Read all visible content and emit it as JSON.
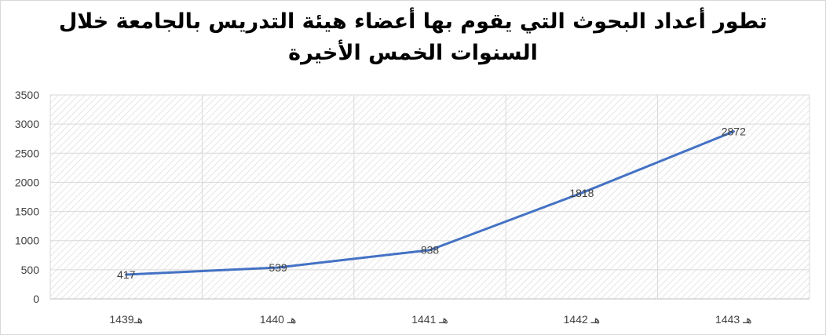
{
  "chart_data": {
    "type": "line",
    "title_line1": "تطور أعداد البحوث التي يقوم بها أعضاء هيئة التدريس بالجامعة خلال",
    "title_line2": "السنوات الخمس الأخيرة",
    "categories": [
      "1439هـ",
      "1440 هـ",
      "1441 هـ",
      "1442 هـ",
      "1443 هـ"
    ],
    "series": [
      {
        "values": [
          417,
          539,
          838,
          1818,
          2872
        ],
        "color": "#4472c4"
      }
    ],
    "data_labels": [
      "417",
      "539",
      "838",
      "1818",
      "2872"
    ],
    "ylim": [
      0,
      3500
    ],
    "yticks": [
      "0",
      "500",
      "1000",
      "1500",
      "2000",
      "2500",
      "3000",
      "3500"
    ],
    "grid": true,
    "legend": "none",
    "plot_background": "diagonal-hatch"
  }
}
